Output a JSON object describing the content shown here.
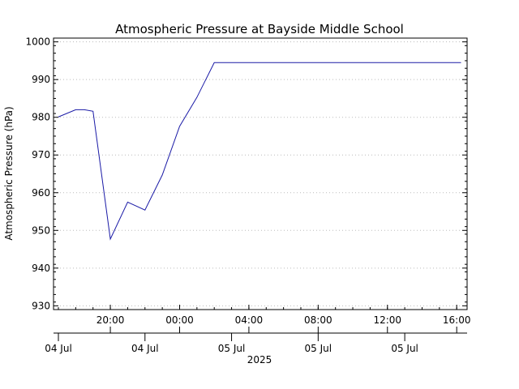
{
  "chart_data": {
    "type": "line",
    "title": "Atmospheric Pressure at Bayside Middle School",
    "ylabel": "Atmospheric Pressure (hPa)",
    "xlabel": "2025",
    "ylim": [
      929,
      1001
    ],
    "yticks": [
      930,
      940,
      950,
      960,
      970,
      980,
      990,
      1000
    ],
    "grid": true,
    "x_domain_hours": [
      -7,
      16.6
    ],
    "time_ticks": [
      {
        "hour": -4,
        "label": "20:00"
      },
      {
        "hour": 0,
        "label": "00:00"
      },
      {
        "hour": 4,
        "label": "04:00"
      },
      {
        "hour": 8,
        "label": "08:00"
      },
      {
        "hour": 12,
        "label": "12:00"
      },
      {
        "hour": 16,
        "label": "16:00"
      }
    ],
    "date_ticks": [
      {
        "hour": -7,
        "label": "04 Jul"
      },
      {
        "hour": -2,
        "label": "04 Jul"
      },
      {
        "hour": 3,
        "label": "05 Jul"
      },
      {
        "hour": 8,
        "label": "05 Jul"
      },
      {
        "hour": 13,
        "label": "05 Jul"
      }
    ],
    "series": [
      {
        "color": "#1a1aa6",
        "points": [
          {
            "t": "2025-07-04 17:00",
            "hour": -7.0,
            "value": 980.1
          },
          {
            "t": "2025-07-04 18:00",
            "hour": -6.0,
            "value": 982.0
          },
          {
            "t": "2025-07-04 18:30",
            "hour": -5.5,
            "value": 982.0
          },
          {
            "t": "2025-07-04 19:00",
            "hour": -5.0,
            "value": 981.6
          },
          {
            "t": "2025-07-04 20:00",
            "hour": -4.0,
            "value": 947.7
          },
          {
            "t": "2025-07-04 21:00",
            "hour": -3.0,
            "value": 957.5
          },
          {
            "t": "2025-07-04 22:00",
            "hour": -2.0,
            "value": 955.4
          },
          {
            "t": "2025-07-04 23:00",
            "hour": -1.0,
            "value": 964.7
          },
          {
            "t": "2025-07-05 00:00",
            "hour": 0.0,
            "value": 977.6
          },
          {
            "t": "2025-07-05 01:00",
            "hour": 1.0,
            "value": 985.3
          },
          {
            "t": "2025-07-05 02:00",
            "hour": 2.0,
            "value": 994.5
          },
          {
            "t": "2025-07-05 16:00",
            "hour": 16.0,
            "value": 994.5
          },
          {
            "t": "2025-07-05 16:15",
            "hour": 16.25,
            "value": 994.5
          }
        ]
      }
    ]
  }
}
